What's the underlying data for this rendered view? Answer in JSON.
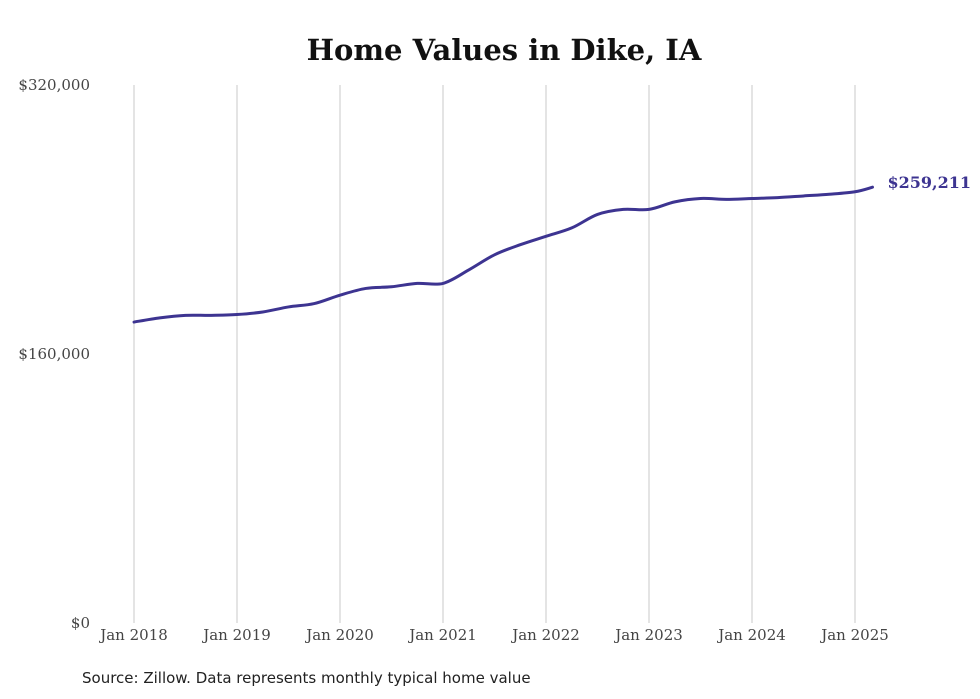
{
  "chart_data": {
    "type": "line",
    "title": "Home Values in Dike, IA",
    "xlabel": "",
    "ylabel": "",
    "ylim": [
      0,
      320000
    ],
    "y_ticks": [
      "$0",
      "$160,000",
      "$320,000"
    ],
    "y_tick_values": [
      0,
      160000,
      320000
    ],
    "x_ticks": [
      "Jan 2018",
      "Jan 2019",
      "Jan 2020",
      "Jan 2021",
      "Jan 2022",
      "Jan 2023",
      "Jan 2024",
      "Jan 2025"
    ],
    "x_tick_values": [
      2018.0,
      2019.0,
      2020.0,
      2021.0,
      2022.0,
      2023.0,
      2024.0,
      2025.0
    ],
    "xlim": [
      2018.0,
      2025.17
    ],
    "grid": "vertical",
    "series": [
      {
        "color": "#3d3491",
        "x": [
          2018.0,
          2018.25,
          2018.5,
          2018.75,
          2019.0,
          2019.25,
          2019.5,
          2019.75,
          2020.0,
          2020.25,
          2020.5,
          2020.75,
          2021.0,
          2021.25,
          2021.5,
          2021.75,
          2022.0,
          2022.25,
          2022.5,
          2022.75,
          2023.0,
          2023.25,
          2023.5,
          2023.75,
          2024.0,
          2024.25,
          2024.5,
          2024.75,
          2025.0,
          2025.17
        ],
        "y": [
          179000,
          181500,
          183000,
          183000,
          183500,
          185000,
          188000,
          190000,
          195000,
          199000,
          200000,
          202000,
          202000,
          210000,
          219000,
          225000,
          230000,
          235000,
          243000,
          246000,
          246000,
          250500,
          252500,
          252000,
          252500,
          253000,
          254000,
          255000,
          256500,
          259211
        ]
      }
    ],
    "end_label": "$259,211"
  },
  "footer": {
    "source": "Source: Zillow. Data represents monthly typical home value"
  }
}
